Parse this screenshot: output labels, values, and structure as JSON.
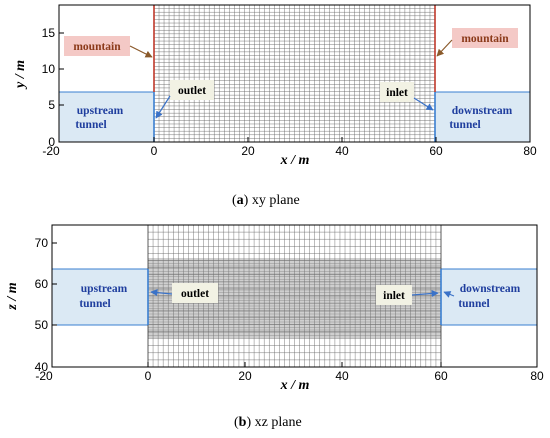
{
  "panel_a": {
    "x_axis_label": "x / m",
    "y_axis_label": "y / m",
    "x_ticks": [
      "-20",
      "0",
      "20",
      "40",
      "60",
      "80"
    ],
    "y_ticks": [
      "0",
      "5",
      "10",
      "15"
    ],
    "labels": {
      "mountain_left": "mountain",
      "mountain_right": "mountain",
      "outlet": "outlet",
      "inlet": "inlet",
      "upstream_line1": "upstream",
      "upstream_line2": "tunnel",
      "downstream_line1": "downstream",
      "downstream_line2": "tunnel"
    },
    "caption_letter": "a",
    "caption_text": " xy plane"
  },
  "panel_b": {
    "x_axis_label": "x / m",
    "y_axis_label": "z / m",
    "x_ticks": [
      "-20",
      "0",
      "20",
      "40",
      "60",
      "80"
    ],
    "y_ticks": [
      "40",
      "50",
      "60",
      "70"
    ],
    "labels": {
      "outlet": "outlet",
      "inlet": "inlet",
      "upstream_line1": "upstream",
      "upstream_line2": "tunnel",
      "downstream_line1": "downstream",
      "downstream_line2": "tunnel"
    },
    "caption_letter": "b",
    "caption_text": " xz plane"
  },
  "colors": {
    "mesh": "#555555",
    "tunnel_fill": "#dbe9f4",
    "tunnel_edge": "#3a7fd0",
    "mountain_edge": "#c0392b",
    "mountain_label_bg": "#f4c9c6",
    "mountain_label_text": "#8b3a1a",
    "tunnel_label_text": "#1f3e9e",
    "port_label_bg": "#f2f2e4",
    "arrow_blue": "#3a72c8",
    "arrow_brown": "#8b5a2b"
  }
}
